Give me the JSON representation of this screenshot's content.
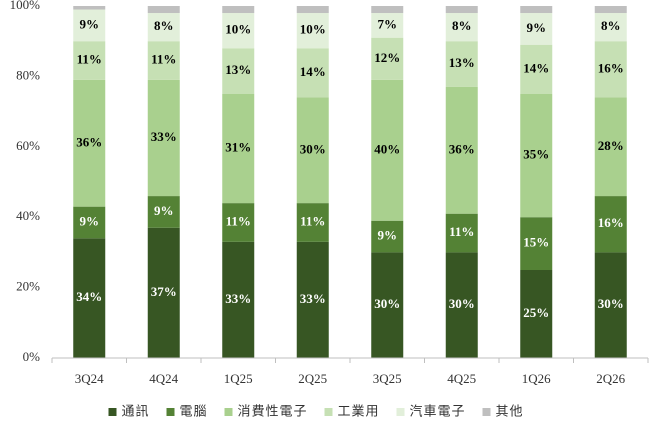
{
  "chart_data": {
    "type": "stacked_bar",
    "categories": [
      "3Q24",
      "4Q24",
      "1Q25",
      "2Q25",
      "3Q25",
      "4Q25",
      "1Q26",
      "2Q26"
    ],
    "series": [
      {
        "name": "通訊",
        "color": "#375623",
        "values": [
          34,
          37,
          33,
          33,
          30,
          30,
          25,
          30
        ],
        "value_labels": [
          "34%",
          "37%",
          "33%",
          "33%",
          "30%",
          "30%",
          "25%",
          "30%"
        ]
      },
      {
        "name": "電腦",
        "color": "#548235",
        "values": [
          9,
          9,
          11,
          11,
          9,
          11,
          15,
          16
        ],
        "value_labels": [
          "9%",
          "9%",
          "11%",
          "11%",
          "9%",
          "11%",
          "15%",
          "16%"
        ]
      },
      {
        "name": "消費性電子",
        "color": "#a9d08e",
        "values": [
          36,
          33,
          31,
          30,
          40,
          36,
          35,
          28
        ],
        "value_labels": [
          "36%",
          "33%",
          "31%",
          "30%",
          "40%",
          "36%",
          "35%",
          "28%"
        ]
      },
      {
        "name": "工業用",
        "color": "#c6e0b4",
        "values": [
          11,
          11,
          13,
          14,
          12,
          13,
          14,
          16
        ],
        "value_labels": [
          "11%",
          "11%",
          "13%",
          "14%",
          "12%",
          "13%",
          "14%",
          "16%"
        ]
      },
      {
        "name": "汽車電子",
        "color": "#e2efda",
        "values": [
          9,
          8,
          10,
          10,
          7,
          8,
          9,
          8
        ],
        "value_labels": [
          "9%",
          "8%",
          "10%",
          "10%",
          "7%",
          "8%",
          "9%",
          "8%"
        ]
      },
      {
        "name": "其他",
        "color": "#bfbfbf",
        "values": [
          1,
          2,
          2,
          2,
          2,
          2,
          2,
          2
        ]
      }
    ],
    "ylim": [
      0,
      100
    ],
    "yticks": [
      {
        "value": 0,
        "label": "0%"
      },
      {
        "value": 20,
        "label": "20%"
      },
      {
        "value": 40,
        "label": "40%"
      },
      {
        "value": 60,
        "label": "60%"
      },
      {
        "value": 80,
        "label": "80%"
      },
      {
        "value": 100,
        "label": "100%"
      }
    ],
    "legend": "bottom"
  }
}
